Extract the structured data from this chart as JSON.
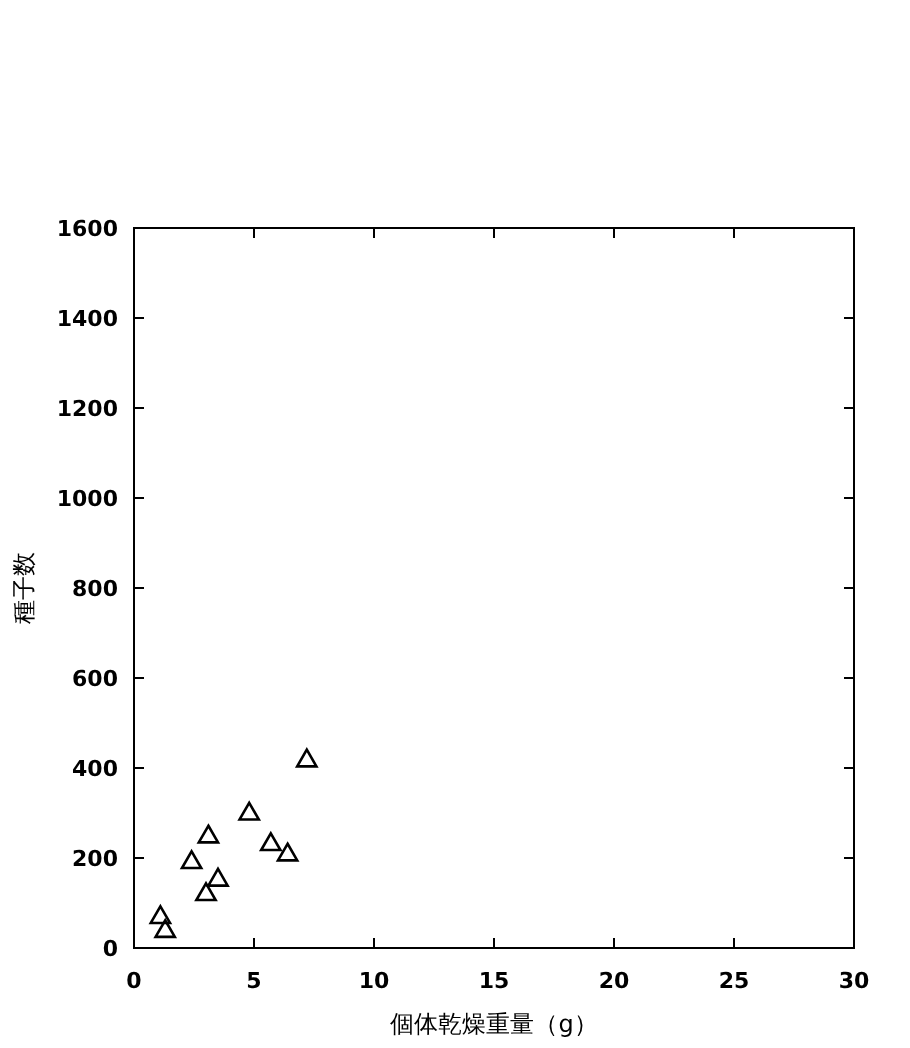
{
  "chart_data": {
    "type": "scatter",
    "xlabel": "個体乾燥重量（g）",
    "ylabel": "種子数",
    "x": [
      1.1,
      1.3,
      2.4,
      3.1,
      3.0,
      3.5,
      4.8,
      5.7,
      6.4,
      7.2
    ],
    "values": [
      68,
      37,
      190,
      247,
      119,
      151,
      298,
      230,
      207,
      416
    ],
    "color": "#000000",
    "marker": "triangle",
    "xlim": [
      0,
      30
    ],
    "xticks": [
      0,
      5,
      10,
      15,
      20,
      25,
      30
    ],
    "ylim": [
      0,
      1600
    ],
    "yticks": [
      0,
      200,
      400,
      600,
      800,
      1000,
      1200,
      1400,
      1600
    ],
    "grid": false
  }
}
